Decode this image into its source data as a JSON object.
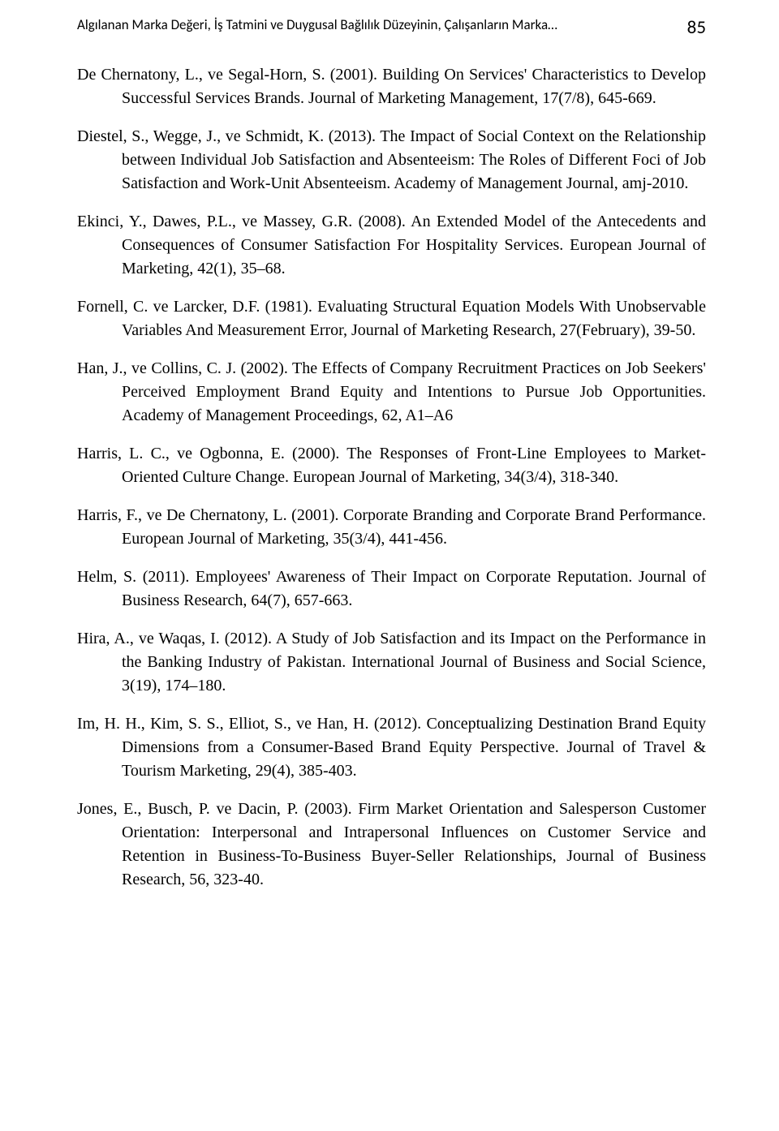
{
  "header": {
    "running_title": "Algılanan Marka Değeri, İş Tatmini ve Duygusal Bağlılık Düzeyinin, Çalışanların Marka…",
    "page_number": "85"
  },
  "references": [
    "De Chernatony, L., ve Segal-Horn, S. (2001). Building On Services' Characteristics to Develop Successful Services Brands. Journal of Marketing Management, 17(7/8), 645-669.",
    "Diestel, S., Wegge, J., ve Schmidt, K. (2013). The Impact of Social Context on the Relationship between Individual Job Satisfaction and Absenteeism: The Roles of Different Foci of Job Satisfaction and Work-Unit Absenteeism. Academy of Management Journal, amj-2010.",
    "Ekinci, Y., Dawes, P.L., ve Massey, G.R. (2008). An Extended Model of the Antecedents and Consequences of Consumer Satisfaction For Hospitality Services. European Journal of Marketing, 42(1), 35–68.",
    "Fornell, C. ve Larcker, D.F. (1981). Evaluating Structural Equation Models With Unobservable Variables And Measurement Error, Journal of Marketing Research, 27(February), 39-50.",
    "Han, J., ve Collins, C. J. (2002). The Effects of Company Recruitment Practices on Job Seekers' Perceived Employment Brand Equity and Intentions to Pursue Job Opportunities. Academy of Management Proceedings, 62, A1–A6",
    "Harris, L. C., ve Ogbonna, E. (2000). The Responses of Front-Line Employees to Market-Oriented Culture Change. European Journal of Marketing, 34(3/4), 318-340.",
    "Harris, F., ve De Chernatony, L. (2001). Corporate Branding and Corporate Brand Performance. European Journal of Marketing, 35(3/4), 441-456.",
    "Helm, S. (2011). Employees' Awareness of Their Impact on Corporate Reputation. Journal of Business Research, 64(7), 657-663.",
    "Hira, A., ve Waqas, I. (2012). A Study of Job Satisfaction and its Impact on the Performance in the Banking Industry of Pakistan. International Journal of Business and Social Science, 3(19), 174–180.",
    "Im, H. H., Kim, S. S., Elliot, S., ve Han, H. (2012). Conceptualizing Destination Brand Equity Dimensions from a Consumer-Based Brand Equity Perspective. Journal of Travel & Tourism Marketing, 29(4), 385-403.",
    "Jones, E., Busch, P. ve Dacin, P. (2003). Firm Market Orientation and Salesperson Customer Orientation: Interpersonal and Intrapersonal Influences on Customer Service and Retention in Business-To-Business Buyer-Seller Relationships, Journal of Business Research, 56, 323-40."
  ]
}
